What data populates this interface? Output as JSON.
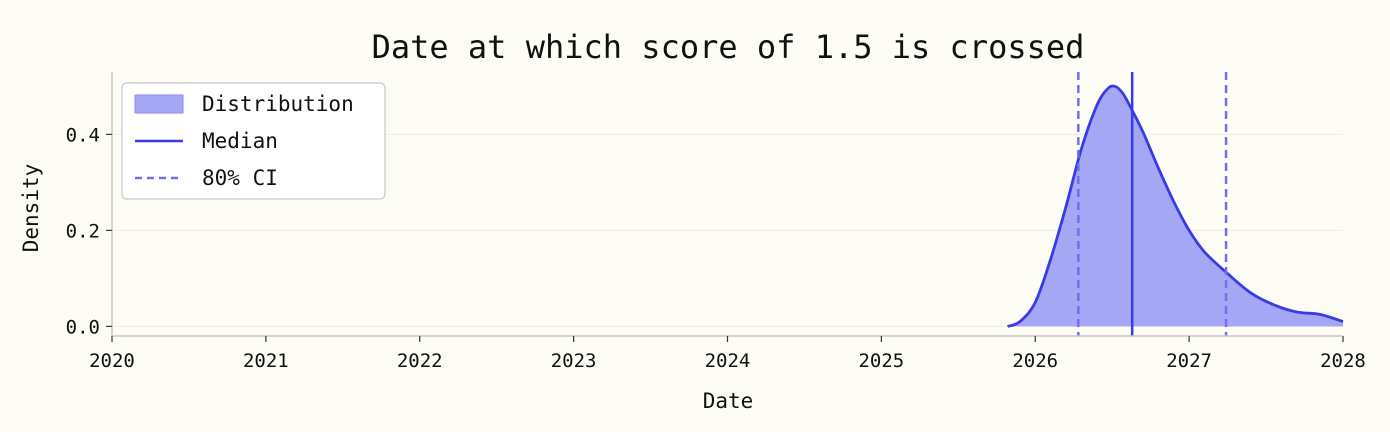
{
  "chart_data": {
    "type": "area",
    "title": "Date at which score of 1.5 is crossed",
    "xlabel": "Date",
    "ylabel": "Density",
    "xlim": [
      2020,
      2028
    ],
    "ylim": [
      -0.02,
      0.53
    ],
    "xticks": [
      2020,
      2021,
      2022,
      2023,
      2024,
      2025,
      2026,
      2027,
      2028
    ],
    "xtick_labels": [
      "2020",
      "2021",
      "2022",
      "2023",
      "2024",
      "2025",
      "2026",
      "2027",
      "2028"
    ],
    "yticks": [
      0.0,
      0.2,
      0.4
    ],
    "ytick_labels": [
      "0.0",
      "0.2",
      "0.4"
    ],
    "grid": "horizontal",
    "legend_position": "top-left",
    "series": [
      {
        "name": "Distribution",
        "kind": "filled-density",
        "x": [
          2025.82,
          2025.9,
          2026.0,
          2026.1,
          2026.2,
          2026.3,
          2026.4,
          2026.47,
          2026.52,
          2026.57,
          2026.63,
          2026.7,
          2026.8,
          2026.9,
          2027.0,
          2027.1,
          2027.25,
          2027.4,
          2027.55,
          2027.7,
          2027.85,
          2028.0
        ],
        "y": [
          0.0,
          0.01,
          0.05,
          0.14,
          0.25,
          0.37,
          0.46,
          0.495,
          0.5,
          0.485,
          0.45,
          0.405,
          0.33,
          0.26,
          0.2,
          0.155,
          0.11,
          0.07,
          0.045,
          0.03,
          0.025,
          0.01
        ]
      },
      {
        "name": "Median",
        "kind": "vline",
        "x": 2026.63
      },
      {
        "name": "80% CI",
        "kind": "vline-dashed",
        "x": [
          2026.28,
          2027.24
        ]
      }
    ],
    "colors": {
      "fill": "#a5a7f5",
      "line": "#3a3ae8",
      "ci": "#7070ec",
      "background": "#fdfdf6"
    }
  }
}
